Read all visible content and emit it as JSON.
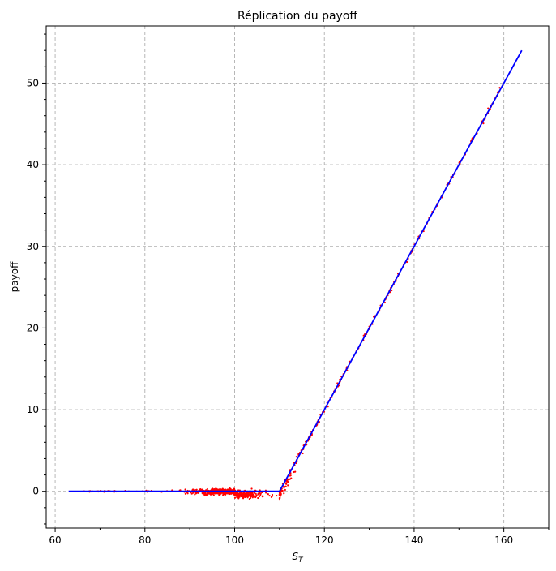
{
  "chart_data": {
    "type": "scatter",
    "title": "Réplication du payoff",
    "xlabel_main": "S",
    "xlabel_sub": "T",
    "ylabel": "payoff",
    "xlim": [
      58,
      170
    ],
    "ylim": [
      -4.5,
      57
    ],
    "xticks": [
      60,
      80,
      100,
      120,
      140,
      160
    ],
    "yticks": [
      0,
      10,
      20,
      30,
      40,
      50
    ],
    "grid": true,
    "strike": 110,
    "series": [
      {
        "kind": "line",
        "color": "#0000ff",
        "x": [
          63,
          110,
          164
        ],
        "y": [
          0,
          0,
          54
        ]
      },
      {
        "kind": "scatter",
        "color": "#ff0000",
        "x_range": [
          66,
          160
        ],
        "y_noise_range": [
          -1.2,
          0.6
        ]
      }
    ]
  }
}
